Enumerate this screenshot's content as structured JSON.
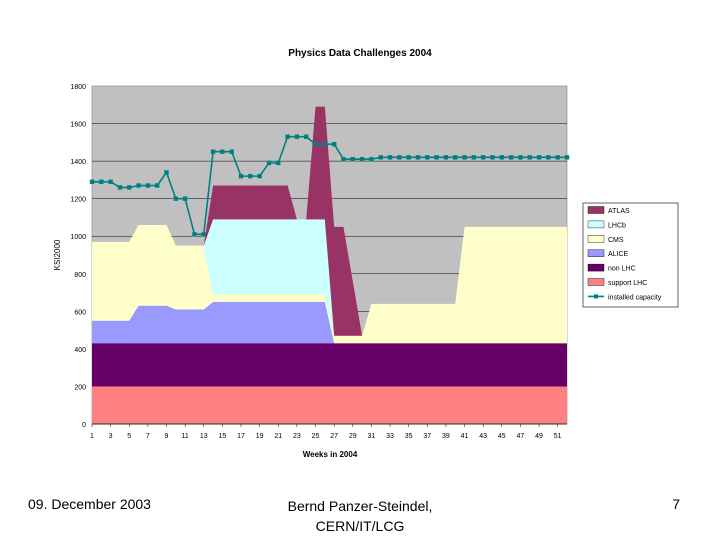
{
  "footer": {
    "date": "09. December 2003",
    "author_line1": "Bernd Panzer-Steindel,",
    "author_line2": "CERN/IT/LCG",
    "page": "7"
  },
  "chart_data": {
    "type": "area",
    "title": "Physics Data Challenges 2004",
    "xlabel": "Weeks in 2004",
    "ylabel": "KSI2000",
    "ylim": [
      0,
      1800
    ],
    "yticks": [
      0,
      200,
      400,
      600,
      800,
      1000,
      1200,
      1400,
      1600,
      1800
    ],
    "xlim": [
      1,
      52
    ],
    "xticks": [
      1,
      3,
      5,
      7,
      9,
      11,
      13,
      15,
      17,
      19,
      21,
      23,
      25,
      27,
      29,
      31,
      33,
      35,
      37,
      39,
      41,
      43,
      45,
      47,
      49,
      51
    ],
    "grid": true,
    "legend": "right",
    "plot_background": "#c0c0c0",
    "stacked_series": [
      {
        "name": "support LHC",
        "color": "#ff8080",
        "points": [
          [
            1,
            200
          ],
          [
            52,
            200
          ]
        ]
      },
      {
        "name": "non LHC",
        "color": "#660066",
        "points": [
          [
            1,
            230
          ],
          [
            52,
            230
          ]
        ]
      },
      {
        "name": "ALICE",
        "color": "#9999ff",
        "points": [
          [
            1,
            120
          ],
          [
            5,
            120
          ],
          [
            6,
            200
          ],
          [
            9,
            200
          ],
          [
            10,
            180
          ],
          [
            13,
            180
          ],
          [
            14,
            220
          ],
          [
            25,
            220
          ],
          [
            26,
            220
          ],
          [
            27,
            0
          ],
          [
            52,
            0
          ]
        ]
      },
      {
        "name": "CMS",
        "color": "#ffffcc",
        "points": [
          [
            1,
            420
          ],
          [
            5,
            420
          ],
          [
            6,
            430
          ],
          [
            9,
            430
          ],
          [
            10,
            340
          ],
          [
            13,
            340
          ],
          [
            14,
            40
          ],
          [
            25,
            40
          ],
          [
            26,
            40
          ],
          [
            27,
            40
          ],
          [
            30,
            40
          ],
          [
            31,
            210
          ],
          [
            40,
            210
          ],
          [
            41,
            620
          ],
          [
            52,
            620
          ]
        ]
      },
      {
        "name": "LHCb",
        "color": "#ccffff",
        "points": [
          [
            1,
            0
          ],
          [
            13,
            0
          ],
          [
            14,
            400
          ],
          [
            25,
            400
          ],
          [
            26,
            400
          ],
          [
            27,
            0
          ],
          [
            52,
            0
          ]
        ]
      },
      {
        "name": "ATLAS",
        "color": "#993366",
        "points": [
          [
            1,
            0
          ],
          [
            13,
            0
          ],
          [
            14,
            180
          ],
          [
            22,
            180
          ],
          [
            23,
            0
          ],
          [
            24,
            0
          ],
          [
            25,
            600
          ],
          [
            26,
            600
          ],
          [
            27,
            580
          ],
          [
            28,
            580
          ],
          [
            30,
            0
          ],
          [
            52,
            0
          ]
        ]
      }
    ],
    "line_series": {
      "name": "installed capacity",
      "color": "#008080",
      "x": [
        1,
        2,
        3,
        4,
        5,
        6,
        7,
        8,
        9,
        10,
        11,
        12,
        13,
        14,
        15,
        16,
        17,
        18,
        19,
        20,
        21,
        22,
        23,
        24,
        25,
        26,
        27,
        28,
        29,
        30,
        31,
        32,
        33,
        34,
        35,
        36,
        37,
        38,
        39,
        40,
        41,
        42,
        43,
        44,
        45,
        46,
        47,
        48,
        49,
        50,
        51,
        52
      ],
      "y": [
        1290,
        1290,
        1290,
        1260,
        1260,
        1270,
        1270,
        1270,
        1340,
        1200,
        1200,
        1010,
        1010,
        1450,
        1450,
        1450,
        1320,
        1320,
        1320,
        1390,
        1390,
        1530,
        1530,
        1530,
        1490,
        1490,
        1490,
        1410,
        1410,
        1410,
        1410,
        1420,
        1420,
        1420,
        1420,
        1420,
        1420,
        1420,
        1420,
        1420,
        1420,
        1420,
        1420,
        1420,
        1420,
        1420,
        1420,
        1420,
        1420,
        1420,
        1420,
        1420
      ]
    },
    "legend_entries": [
      "ATLAS",
      "LHCb",
      "CMS",
      "ALICE",
      "non LHC",
      "support LHC",
      "installed capacity"
    ]
  }
}
